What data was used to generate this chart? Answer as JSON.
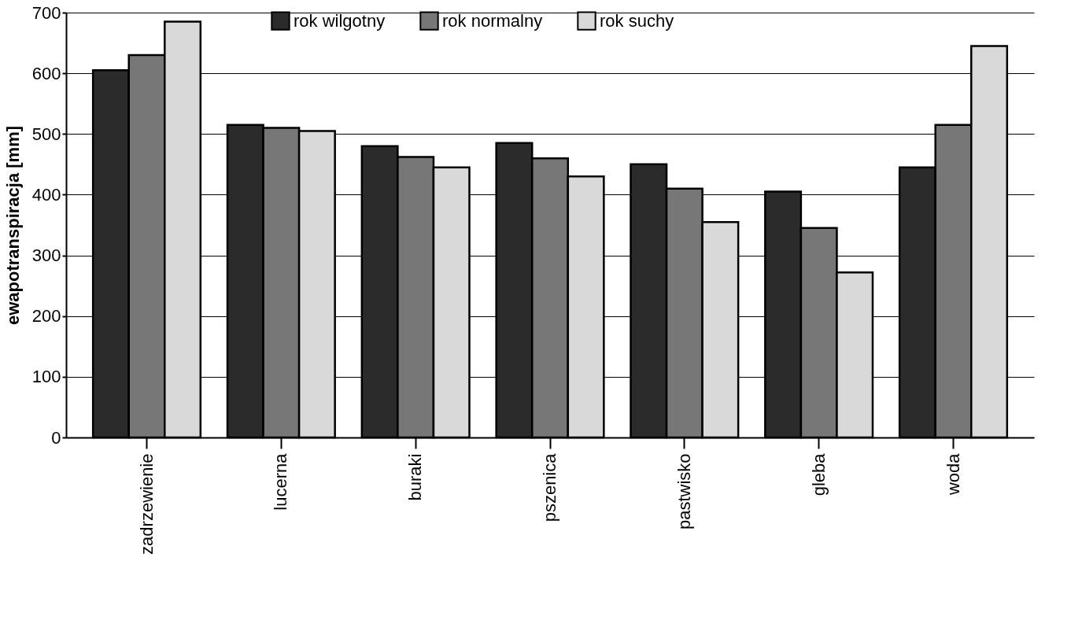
{
  "chart_data": {
    "type": "bar",
    "ylabel": "ewapotranspiracja [mm]",
    "categories": [
      "zadrzewienie",
      "lucerna",
      "buraki",
      "pszenica",
      "pastwisko",
      "gleba",
      "woda"
    ],
    "series": [
      {
        "name": "rok wilgotny",
        "color": "#2b2b2b",
        "values": [
          605,
          515,
          480,
          485,
          450,
          405,
          445
        ]
      },
      {
        "name": "rok normalny",
        "color": "#777777",
        "values": [
          630,
          510,
          462,
          460,
          410,
          345,
          515
        ]
      },
      {
        "name": "rok suchy",
        "color": "#d9d9d9",
        "values": [
          685,
          505,
          445,
          430,
          355,
          272,
          645
        ]
      }
    ],
    "ylim": [
      0,
      700
    ],
    "yticks": [
      0,
      100,
      200,
      300,
      400,
      500,
      600,
      700
    ],
    "grid": "y",
    "legend": "top"
  }
}
